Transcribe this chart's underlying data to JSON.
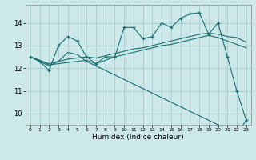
{
  "xlabel": "Humidex (Indice chaleur)",
  "bg_color": "#cce8e8",
  "grid_color": "#aacccc",
  "line_color": "#1a7070",
  "x_ticks": [
    0,
    1,
    2,
    3,
    4,
    5,
    6,
    7,
    8,
    9,
    10,
    11,
    12,
    13,
    14,
    15,
    16,
    17,
    18,
    19,
    20,
    21,
    22,
    23
  ],
  "y_ticks": [
    10,
    11,
    12,
    13,
    14
  ],
  "xlim": [
    -0.5,
    23.5
  ],
  "ylim": [
    9.5,
    14.8
  ],
  "series_main": [
    12.5,
    12.3,
    11.9,
    13.0,
    13.4,
    13.2,
    12.5,
    12.2,
    12.5,
    12.5,
    13.8,
    13.8,
    13.3,
    13.4,
    14.0,
    13.8,
    14.2,
    14.4,
    14.45,
    13.5,
    14.0,
    12.5,
    11.0,
    9.7
  ],
  "series_trend1": [
    12.5,
    12.35,
    12.2,
    12.3,
    12.4,
    12.45,
    12.5,
    12.45,
    12.55,
    12.65,
    12.75,
    12.85,
    12.9,
    13.0,
    13.1,
    13.2,
    13.3,
    13.4,
    13.5,
    13.55,
    13.5,
    13.4,
    13.35,
    13.15
  ],
  "series_trend2": [
    12.5,
    12.35,
    12.15,
    12.2,
    12.25,
    12.3,
    12.35,
    12.2,
    12.35,
    12.5,
    12.6,
    12.7,
    12.8,
    12.9,
    13.0,
    13.05,
    13.15,
    13.25,
    13.35,
    13.45,
    13.35,
    13.2,
    13.05,
    12.9
  ],
  "series_diagonal": [
    12.5,
    12.3,
    12.1,
    12.3,
    12.7,
    12.6,
    12.3,
    12.1,
    11.9,
    11.7,
    11.5,
    11.3,
    11.1,
    10.9,
    10.7,
    10.5,
    10.3,
    10.1,
    9.9,
    9.7,
    9.5,
    9.3,
    9.1,
    9.7
  ]
}
